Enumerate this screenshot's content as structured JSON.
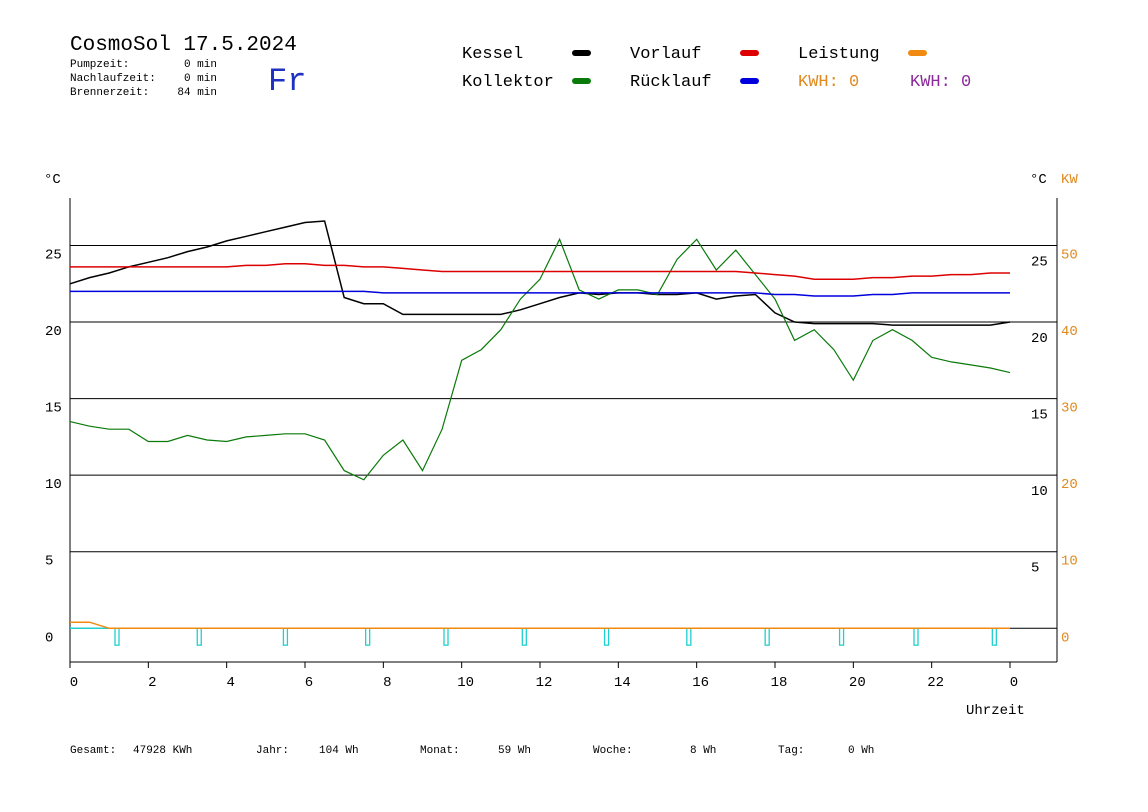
{
  "header": {
    "title": "CosmoSol 17.5.2024",
    "day": "Fr",
    "info": [
      {
        "label": "Pumpzeit:",
        "value": "0 min"
      },
      {
        "label": "Nachlaufzeit:",
        "value": "0 min"
      },
      {
        "label": "Brennerzeit:",
        "value": "84 min"
      }
    ],
    "kwh_labels": [
      {
        "text": "KWH: 0",
        "color": "#e08a20"
      },
      {
        "text": "KWH: 0",
        "color": "#8a2a9a"
      }
    ]
  },
  "chart_data": {
    "type": "line",
    "y_label": "°C",
    "y_label_right": "°C",
    "y2_label": "KW",
    "x_label": "Uhrzeit",
    "x": [
      0,
      0.5,
      1,
      1.5,
      2,
      2.5,
      3,
      3.5,
      4,
      4.5,
      5,
      5.5,
      6,
      6.5,
      7,
      7.5,
      8,
      8.5,
      9,
      9.5,
      10,
      10.5,
      11,
      11.5,
      12,
      12.5,
      13,
      13.5,
      14,
      14.5,
      15,
      15.5,
      16,
      16.5,
      17,
      17.5,
      18,
      18.5,
      19,
      19.5,
      20,
      20.5,
      21,
      21.5,
      22,
      22.5,
      23,
      23.5,
      24
    ],
    "series": [
      {
        "name": "Kessel",
        "color": "#000000",
        "values": [
          22.5,
          22.9,
          23.2,
          23.6,
          23.9,
          24.2,
          24.6,
          24.9,
          25.3,
          25.6,
          25.9,
          26.2,
          26.5,
          26.6,
          21.6,
          21.2,
          21.2,
          20.5,
          20.5,
          20.5,
          20.5,
          20.5,
          20.5,
          20.8,
          21.2,
          21.6,
          21.9,
          21.8,
          21.9,
          21.9,
          21.8,
          21.8,
          21.9,
          21.5,
          21.7,
          21.8,
          20.6,
          20.0,
          19.9,
          19.9,
          19.9,
          19.9,
          19.8,
          19.8,
          19.8,
          19.8,
          19.8,
          19.8,
          20.0
        ]
      },
      {
        "name": "Kollektor",
        "color": "#0a7a0a",
        "values": [
          13.5,
          13.2,
          13.0,
          13.0,
          12.2,
          12.2,
          12.6,
          12.3,
          12.2,
          12.5,
          12.6,
          12.7,
          12.7,
          12.3,
          10.3,
          9.7,
          11.3,
          12.3,
          10.3,
          13.0,
          17.5,
          18.2,
          19.5,
          21.5,
          22.8,
          25.4,
          22.1,
          21.5,
          22.1,
          22.1,
          21.8,
          24.1,
          25.4,
          23.4,
          24.7,
          23.1,
          21.5,
          18.8,
          19.5,
          18.2,
          16.2,
          18.8,
          19.5,
          18.8,
          17.7,
          17.4,
          17.2,
          17.0,
          16.7
        ]
      },
      {
        "name": "Vorlauf",
        "color": "#dd0000",
        "values": [
          23.6,
          23.6,
          23.6,
          23.6,
          23.6,
          23.6,
          23.6,
          23.6,
          23.6,
          23.7,
          23.7,
          23.8,
          23.8,
          23.7,
          23.7,
          23.6,
          23.6,
          23.5,
          23.4,
          23.3,
          23.3,
          23.3,
          23.3,
          23.3,
          23.3,
          23.3,
          23.3,
          23.3,
          23.3,
          23.3,
          23.3,
          23.3,
          23.3,
          23.3,
          23.3,
          23.2,
          23.1,
          23.0,
          22.8,
          22.8,
          22.8,
          22.9,
          22.9,
          23.0,
          23.0,
          23.1,
          23.1,
          23.2,
          23.2
        ]
      },
      {
        "name": "Rücklauf",
        "color": "#0000dd",
        "values": [
          22.0,
          22.0,
          22.0,
          22.0,
          22.0,
          22.0,
          22.0,
          22.0,
          22.0,
          22.0,
          22.0,
          22.0,
          22.0,
          22.0,
          22.0,
          22.0,
          21.9,
          21.9,
          21.9,
          21.9,
          21.9,
          21.9,
          21.9,
          21.9,
          21.9,
          21.9,
          21.9,
          21.9,
          21.9,
          21.9,
          21.9,
          21.9,
          21.9,
          21.9,
          21.9,
          21.9,
          21.8,
          21.8,
          21.7,
          21.7,
          21.7,
          21.8,
          21.8,
          21.9,
          21.9,
          21.9,
          21.9,
          21.9,
          21.9
        ]
      },
      {
        "name": "Leistung",
        "color": "#f08a10",
        "axis": "y2",
        "values": [
          0.8,
          0.8,
          0,
          0,
          0,
          0,
          0,
          0,
          0,
          0,
          0,
          0,
          0,
          0,
          0,
          0,
          0,
          0,
          0,
          0,
          0,
          0,
          0,
          0,
          0,
          0,
          0,
          0,
          0,
          0,
          0,
          0,
          0,
          0,
          0,
          0,
          0,
          0,
          0,
          0,
          0,
          0,
          0,
          0,
          0,
          0,
          0,
          0,
          0
        ]
      }
    ],
    "pump": {
      "color": "#20d0d0",
      "x": [
        1.2,
        3.3,
        5.5,
        7.6,
        9.6,
        11.6,
        13.7,
        15.8,
        17.8,
        19.7,
        21.6,
        23.6
      ],
      "values": [
        -1.1,
        -1.1,
        -1.1,
        -1.1,
        -1.1,
        -1.1,
        -1.1,
        -1.1,
        -1.1,
        -1.1,
        -1.1,
        -1.1
      ]
    },
    "xlim": [
      0,
      25.2
    ],
    "xticks": [
      0,
      2,
      4,
      6,
      8,
      10,
      12,
      14,
      16,
      18,
      20,
      22,
      {
        "value": 24,
        "label": "0"
      }
    ],
    "ylim": [
      -2.2,
      28.1
    ],
    "yticks": [
      0,
      5,
      10,
      15,
      20,
      25
    ],
    "yticks_right": [
      5,
      10,
      15,
      20,
      25
    ],
    "y2lim": [
      -4.4,
      56.2
    ],
    "y2ticks": [
      0,
      10,
      20,
      30,
      40,
      50
    ],
    "y2_color": "#e08a20",
    "grid": true
  },
  "footer": [
    {
      "label": "Gesamt:",
      "value": "47928 KWh"
    },
    {
      "label": "Jahr:",
      "value": "104 Wh"
    },
    {
      "label": "Monat:",
      "value": "59 Wh"
    },
    {
      "label": "Woche:",
      "value": "8 Wh"
    },
    {
      "label": "Tag:",
      "value": "0 Wh"
    }
  ]
}
